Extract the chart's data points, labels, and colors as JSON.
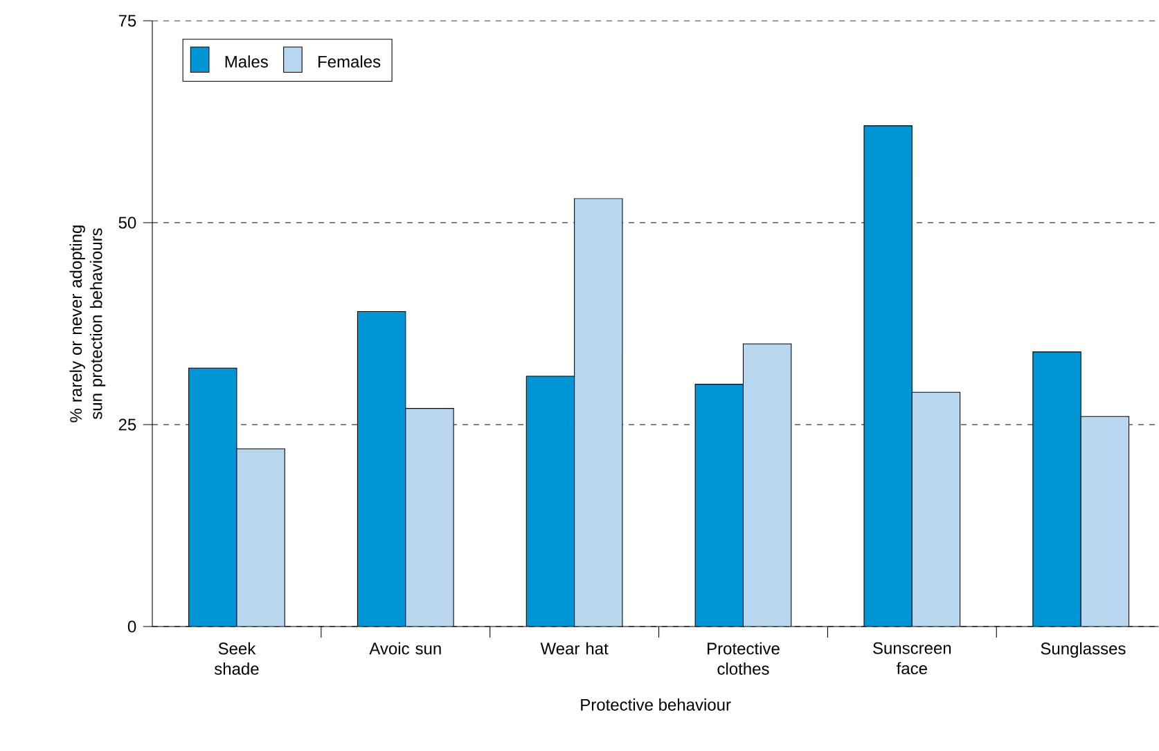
{
  "chart_data": {
    "type": "bar",
    "xlabel": "Protective behaviour",
    "ylabel": "% rarely or never adopting sun protection behaviours",
    "categories": [
      "Seek shade",
      "Avoic sun",
      "Wear hat",
      "Protective clothes",
      "Sunscreen face",
      "Sunglasses"
    ],
    "series": [
      {
        "name": "Males",
        "color": "#0095d5",
        "values": [
          32,
          39,
          31,
          30,
          62,
          34
        ]
      },
      {
        "name": "Females",
        "color": "#b8d6ee",
        "values": [
          22,
          27,
          53,
          35,
          29,
          26
        ]
      }
    ],
    "ylim": [
      0,
      75
    ],
    "yticks": [
      0,
      25,
      50,
      75
    ],
    "grid": "y",
    "legend": "top left"
  }
}
